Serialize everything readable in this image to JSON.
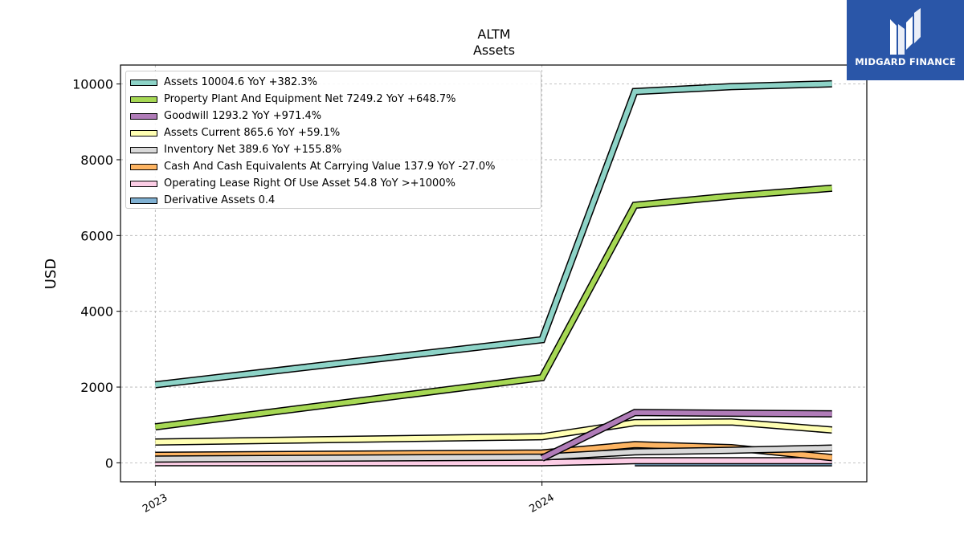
{
  "chart_data": {
    "type": "line",
    "title": "ALTM",
    "subtitle": "Assets",
    "ylabel": "USD",
    "xlabel": "",
    "x_ticks": [
      "2023",
      "2024"
    ],
    "x_range": [
      2022.91,
      2024.84
    ],
    "ylim": [
      -500,
      10500
    ],
    "y_ticks": [
      0,
      2000,
      4000,
      6000,
      8000,
      10000
    ],
    "grid": true,
    "legend_position": "top-left",
    "series": [
      {
        "name": "Assets",
        "legend_label": "Assets  10004.6 YoY +382.3%",
        "color": "#8dd3c7",
        "x": [
          2023.0,
          2024.0,
          2024.24,
          2024.49,
          2024.75
        ],
        "y": [
          2060,
          3250,
          9800,
          9930,
          10005
        ]
      },
      {
        "name": "Property Plant And Equipment Net",
        "legend_label": "Property Plant And Equipment Net  7249.2 YoY +648.7%",
        "color": "#a6d854",
        "x": [
          2023.0,
          2024.0,
          2024.24,
          2024.49,
          2024.75
        ],
        "y": [
          950,
          2250,
          6800,
          7040,
          7249
        ]
      },
      {
        "name": "Goodwill",
        "legend_label": "Goodwill  1293.2 YoY +971.4%",
        "color": "#b07cb8",
        "x": [
          2024.0,
          2024.24,
          2024.49,
          2024.75
        ],
        "y": [
          120,
          1330,
          1310,
          1293
        ]
      },
      {
        "name": "Assets Current",
        "legend_label": "Assets Current  865.6 YoY +59.1%",
        "color": "#ffffb3",
        "x": [
          2023.0,
          2024.0,
          2024.24,
          2024.49,
          2024.75
        ],
        "y": [
          550,
          690,
          1060,
          1080,
          866
        ]
      },
      {
        "name": "Inventory Net",
        "legend_label": "Inventory Net  389.6 YoY +155.8%",
        "color": "#d9d9d9",
        "x": [
          2023.0,
          2024.0,
          2024.24,
          2024.49,
          2024.75
        ],
        "y": [
          100,
          150,
          290,
          330,
          390
        ]
      },
      {
        "name": "Cash And Cash Equivalents At Carrying Value",
        "legend_label": "Cash And Cash Equivalents At Carrying Value  137.9 YoY -27.0%",
        "color": "#fdb462",
        "x": [
          2023.0,
          2024.0,
          2024.24,
          2024.49,
          2024.75
        ],
        "y": [
          200,
          260,
          480,
          400,
          138
        ]
      },
      {
        "name": "Operating Lease Right Of Use Asset",
        "legend_label": "Operating Lease Right Of Use Asset  54.8 YoY >+1000%",
        "color": "#fccde5",
        "x": [
          2023.0,
          2024.0,
          2024.24,
          2024.49,
          2024.75
        ],
        "y": [
          5,
          5,
          55,
          55,
          55
        ]
      },
      {
        "name": "Derivative Assets",
        "legend_label": "Derivative Assets  0.4",
        "color": "#80b1d3",
        "x": [
          2024.24,
          2024.49,
          2024.75
        ],
        "y": [
          0.4,
          0.4,
          0.4
        ]
      }
    ]
  },
  "logo": {
    "text": "MIDGARD FINANCE",
    "icon": "midgard-logo-icon",
    "background": "#2a56a8"
  }
}
